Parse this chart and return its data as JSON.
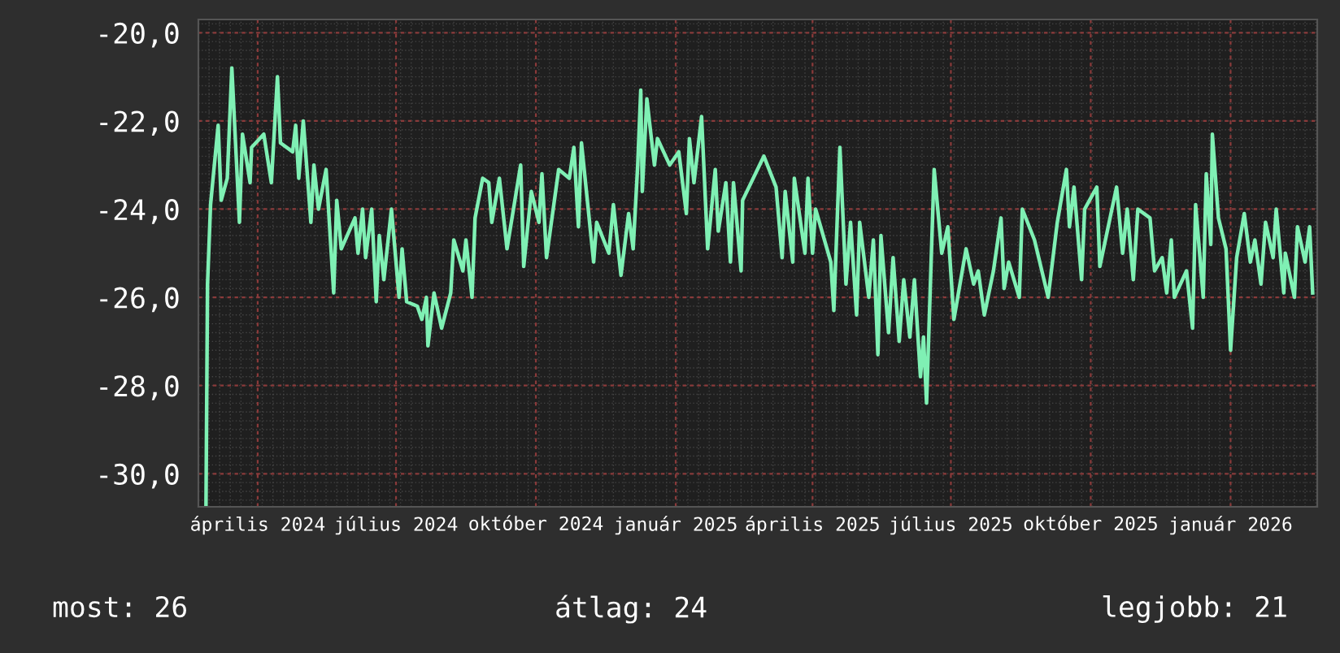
{
  "chart_data": {
    "type": "line",
    "xlim": [
      "2024-02-22",
      "2026-02-27"
    ],
    "ylim": [
      -30.75,
      -19.7
    ],
    "yticks": [
      {
        "value": -20,
        "label": "-20,0"
      },
      {
        "value": -22,
        "label": "-22,0"
      },
      {
        "value": -24,
        "label": "-24,0"
      },
      {
        "value": -26,
        "label": "-26,0"
      },
      {
        "value": -28,
        "label": "-28,0"
      },
      {
        "value": -30,
        "label": "-30,0"
      }
    ],
    "xticks": [
      {
        "value": "2024-04-01",
        "label": "április 2024"
      },
      {
        "value": "2024-07-01",
        "label": "július 2024"
      },
      {
        "value": "2024-10-01",
        "label": "október 2024"
      },
      {
        "value": "2025-01-01",
        "label": "január 2025"
      },
      {
        "value": "2025-04-01",
        "label": "április 2025"
      },
      {
        "value": "2025-07-01",
        "label": "július 2025"
      },
      {
        "value": "2025-10-01",
        "label": "október 2025"
      },
      {
        "value": "2026-01-01",
        "label": "január 2026"
      }
    ],
    "grid": true,
    "marker": "none",
    "line_style": "solid",
    "annotations": [
      "most: 26",
      "átlag: 24",
      "legjobb: 21"
    ],
    "x": [
      "2024-02-27",
      "2024-02-28",
      "2024-03-01",
      "2024-03-06",
      "2024-03-08",
      "2024-03-12",
      "2024-03-15",
      "2024-03-20",
      "2024-03-22",
      "2024-03-27",
      "2024-03-28",
      "2024-04-05",
      "2024-04-10",
      "2024-04-14",
      "2024-04-16",
      "2024-04-24",
      "2024-04-26",
      "2024-04-28",
      "2024-05-01",
      "2024-05-06",
      "2024-05-08",
      "2024-05-11",
      "2024-05-16",
      "2024-05-21",
      "2024-05-23",
      "2024-05-26",
      "2024-06-04",
      "2024-06-06",
      "2024-06-09",
      "2024-06-11",
      "2024-06-15",
      "2024-06-18",
      "2024-06-20",
      "2024-06-23",
      "2024-06-28",
      "2024-07-03",
      "2024-07-05",
      "2024-07-08",
      "2024-07-15",
      "2024-07-18",
      "2024-07-21",
      "2024-07-22",
      "2024-07-26",
      "2024-07-31",
      "2024-08-06",
      "2024-08-08",
      "2024-08-14",
      "2024-08-16",
      "2024-08-20",
      "2024-08-22",
      "2024-08-27",
      "2024-08-31",
      "2024-09-02",
      "2024-09-07",
      "2024-09-12",
      "2024-09-21",
      "2024-09-23",
      "2024-09-28",
      "2024-10-03",
      "2024-10-05",
      "2024-10-08",
      "2024-10-16",
      "2024-10-23",
      "2024-10-26",
      "2024-10-29",
      "2024-10-31",
      "2024-11-08",
      "2024-11-10",
      "2024-11-18",
      "2024-11-21",
      "2024-11-26",
      "2024-12-01",
      "2024-12-04",
      "2024-12-07",
      "2024-12-09",
      "2024-12-10",
      "2024-12-13",
      "2024-12-18",
      "2024-12-20",
      "2024-12-28",
      "2025-01-03",
      "2025-01-08",
      "2025-01-10",
      "2025-01-13",
      "2025-01-18",
      "2025-01-22",
      "2025-01-27",
      "2025-01-29",
      "2025-02-03",
      "2025-02-06",
      "2025-02-08",
      "2025-02-13",
      "2025-02-14",
      "2025-02-28",
      "2025-03-08",
      "2025-03-12",
      "2025-03-14",
      "2025-03-19",
      "2025-03-20",
      "2025-03-27",
      "2025-03-29",
      "2025-04-01",
      "2025-04-03",
      "2025-04-13",
      "2025-04-15",
      "2025-04-19",
      "2025-04-23",
      "2025-04-26",
      "2025-04-30",
      "2025-05-02",
      "2025-05-08",
      "2025-05-11",
      "2025-05-14",
      "2025-05-16",
      "2025-05-21",
      "2025-05-24",
      "2025-05-28",
      "2025-05-31",
      "2025-06-04",
      "2025-06-07",
      "2025-06-11",
      "2025-06-13",
      "2025-06-15",
      "2025-06-18",
      "2025-06-20",
      "2025-06-25",
      "2025-06-29",
      "2025-07-03",
      "2025-07-11",
      "2025-07-16",
      "2025-07-19",
      "2025-07-23",
      "2025-07-29",
      "2025-08-03",
      "2025-08-05",
      "2025-08-08",
      "2025-08-15",
      "2025-08-17",
      "2025-08-25",
      "2025-09-03",
      "2025-09-09",
      "2025-09-15",
      "2025-09-17",
      "2025-09-20",
      "2025-09-25",
      "2025-09-27",
      "2025-10-05",
      "2025-10-07",
      "2025-10-18",
      "2025-10-22",
      "2025-10-25",
      "2025-10-29",
      "2025-11-01",
      "2025-11-09",
      "2025-11-12",
      "2025-11-17",
      "2025-11-20",
      "2025-11-23",
      "2025-11-25",
      "2025-12-03",
      "2025-12-07",
      "2025-12-09",
      "2025-12-14",
      "2025-12-16",
      "2025-12-19",
      "2025-12-20",
      "2025-12-24",
      "2025-12-29",
      "2026-01-01",
      "2026-01-05",
      "2026-01-10",
      "2026-01-14",
      "2026-01-17",
      "2026-01-21",
      "2026-01-24",
      "2026-01-29",
      "2026-01-31",
      "2026-02-05",
      "2026-02-06",
      "2026-02-12",
      "2026-02-14",
      "2026-02-19",
      "2026-02-22",
      "2026-02-24"
    ],
    "series": [
      {
        "color": "#7ff0b4",
        "values": [
          -30.7,
          -25.7,
          -23.9,
          -22.1,
          -23.8,
          -23.3,
          -20.8,
          -24.3,
          -22.3,
          -23.4,
          -22.6,
          -22.3,
          -23.4,
          -21.0,
          -22.5,
          -22.7,
          -22.1,
          -23.3,
          -22.0,
          -24.3,
          -23.0,
          -24.0,
          -23.1,
          -25.9,
          -23.8,
          -24.9,
          -24.2,
          -25.0,
          -24.0,
          -25.1,
          -24.0,
          -26.1,
          -24.6,
          -25.6,
          -24.0,
          -26.0,
          -24.9,
          -26.1,
          -26.2,
          -26.5,
          -26.0,
          -27.1,
          -25.9,
          -26.7,
          -25.9,
          -24.7,
          -25.4,
          -24.7,
          -26.0,
          -24.2,
          -23.3,
          -23.4,
          -24.3,
          -23.3,
          -24.9,
          -23.0,
          -25.3,
          -23.6,
          -24.3,
          -23.2,
          -25.1,
          -23.1,
          -23.3,
          -22.6,
          -24.4,
          -22.5,
          -25.2,
          -24.3,
          -25.0,
          -23.9,
          -25.5,
          -24.1,
          -24.9,
          -23.0,
          -21.3,
          -23.6,
          -21.5,
          -23.0,
          -22.4,
          -23.0,
          -22.7,
          -24.1,
          -22.4,
          -23.4,
          -21.9,
          -24.9,
          -23.1,
          -24.5,
          -23.4,
          -25.2,
          -23.4,
          -25.4,
          -23.8,
          -22.8,
          -23.5,
          -25.1,
          -23.6,
          -25.2,
          -23.3,
          -25.0,
          -23.3,
          -25.0,
          -24.0,
          -25.2,
          -26.3,
          -22.6,
          -25.7,
          -24.3,
          -26.4,
          -24.3,
          -26.0,
          -24.7,
          -27.3,
          -24.6,
          -26.8,
          -25.1,
          -27.0,
          -25.6,
          -26.9,
          -25.6,
          -27.8,
          -26.9,
          -28.4,
          -25.2,
          -23.1,
          -25.0,
          -24.4,
          -26.5,
          -24.9,
          -25.7,
          -25.4,
          -26.4,
          -25.4,
          -24.2,
          -25.8,
          -25.2,
          -26.0,
          -24.0,
          -24.7,
          -26.0,
          -24.3,
          -23.1,
          -24.4,
          -23.5,
          -25.6,
          -24.0,
          -23.5,
          -25.3,
          -23.5,
          -25.0,
          -24.0,
          -25.6,
          -24.0,
          -24.2,
          -25.4,
          -25.1,
          -25.9,
          -24.7,
          -26.0,
          -25.4,
          -26.7,
          -23.9,
          -26.0,
          -23.2,
          -24.8,
          -22.3,
          -24.2,
          -24.9,
          -27.2,
          -25.1,
          -24.1,
          -25.2,
          -24.7,
          -25.7,
          -24.3,
          -25.1,
          -24.0,
          -25.9,
          -25.0,
          -26.0,
          -24.4,
          -25.2,
          -24.4,
          -25.9
        ]
      }
    ]
  }
}
